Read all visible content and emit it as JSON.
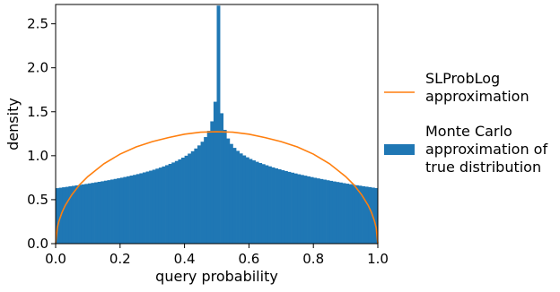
{
  "chart_data": {
    "type": "bar",
    "xlabel": "query probability",
    "ylabel": "density",
    "xlim": [
      0.0,
      1.0
    ],
    "ylim": [
      0.0,
      2.72
    ],
    "x_ticks": [
      "0.0",
      "0.2",
      "0.4",
      "0.6",
      "0.8",
      "1.0"
    ],
    "y_ticks": [
      "0.0",
      "0.5",
      "1.0",
      "1.5",
      "2.0",
      "2.5"
    ],
    "grid": false,
    "legend_position": "right",
    "series": [
      {
        "name": "SLProbLog approximation",
        "type": "line",
        "color": "#ff7f0e",
        "x": [
          0.0,
          0.005,
          0.01,
          0.02,
          0.03,
          0.05,
          0.075,
          0.1,
          0.15,
          0.2,
          0.25,
          0.3,
          0.35,
          0.4,
          0.45,
          0.5,
          0.55,
          0.6,
          0.65,
          0.7,
          0.75,
          0.8,
          0.85,
          0.9,
          0.925,
          0.95,
          0.97,
          0.98,
          0.99,
          0.995,
          1.0
        ],
        "values": [
          0.0,
          0.178,
          0.253,
          0.357,
          0.436,
          0.555,
          0.672,
          0.763,
          0.909,
          1.018,
          1.1,
          1.16,
          1.206,
          1.245,
          1.268,
          1.273,
          1.268,
          1.245,
          1.206,
          1.16,
          1.1,
          1.018,
          0.909,
          0.763,
          0.672,
          0.555,
          0.436,
          0.357,
          0.253,
          0.178,
          0.0
        ]
      },
      {
        "name": "Monte Carlo approximation of true distribution",
        "type": "histogram",
        "color": "#1f77b4",
        "bin_width": 0.01,
        "x": [
          0.005,
          0.015,
          0.025,
          0.035,
          0.045,
          0.055,
          0.065,
          0.075,
          0.085,
          0.095,
          0.105,
          0.115,
          0.125,
          0.135,
          0.145,
          0.155,
          0.165,
          0.175,
          0.185,
          0.195,
          0.205,
          0.215,
          0.225,
          0.235,
          0.245,
          0.255,
          0.265,
          0.275,
          0.285,
          0.295,
          0.305,
          0.315,
          0.325,
          0.335,
          0.345,
          0.355,
          0.365,
          0.375,
          0.385,
          0.395,
          0.405,
          0.415,
          0.425,
          0.435,
          0.445,
          0.455,
          0.465,
          0.475,
          0.485,
          0.495,
          0.505,
          0.515,
          0.525,
          0.535,
          0.545,
          0.555,
          0.565,
          0.575,
          0.585,
          0.595,
          0.605,
          0.615,
          0.625,
          0.635,
          0.645,
          0.655,
          0.665,
          0.675,
          0.685,
          0.695,
          0.705,
          0.715,
          0.725,
          0.735,
          0.745,
          0.755,
          0.765,
          0.775,
          0.785,
          0.795,
          0.805,
          0.815,
          0.825,
          0.835,
          0.845,
          0.855,
          0.865,
          0.875,
          0.885,
          0.895,
          0.905,
          0.915,
          0.925,
          0.935,
          0.945,
          0.955,
          0.965,
          0.975,
          0.985,
          0.995
        ],
        "values": [
          0.631,
          0.636,
          0.641,
          0.646,
          0.652,
          0.657,
          0.663,
          0.668,
          0.674,
          0.679,
          0.685,
          0.691,
          0.697,
          0.703,
          0.709,
          0.716,
          0.722,
          0.729,
          0.736,
          0.743,
          0.75,
          0.758,
          0.766,
          0.774,
          0.782,
          0.791,
          0.8,
          0.81,
          0.82,
          0.83,
          0.841,
          0.853,
          0.865,
          0.878,
          0.892,
          0.907,
          0.923,
          0.94,
          0.958,
          0.978,
          1.0,
          1.024,
          1.051,
          1.082,
          1.117,
          1.159,
          1.212,
          1.283,
          1.391,
          1.614,
          2.707,
          1.483,
          1.294,
          1.196,
          1.134,
          1.089,
          1.055,
          1.026,
          1.003,
          0.982,
          0.963,
          0.947,
          0.931,
          0.917,
          0.904,
          0.891,
          0.879,
          0.867,
          0.856,
          0.846,
          0.835,
          0.826,
          0.816,
          0.807,
          0.798,
          0.789,
          0.781,
          0.773,
          0.765,
          0.757,
          0.749,
          0.742,
          0.735,
          0.728,
          0.721,
          0.714,
          0.707,
          0.701,
          0.695,
          0.688,
          0.682,
          0.676,
          0.67,
          0.664,
          0.659,
          0.653,
          0.648,
          0.643,
          0.637,
          0.632
        ]
      }
    ]
  }
}
